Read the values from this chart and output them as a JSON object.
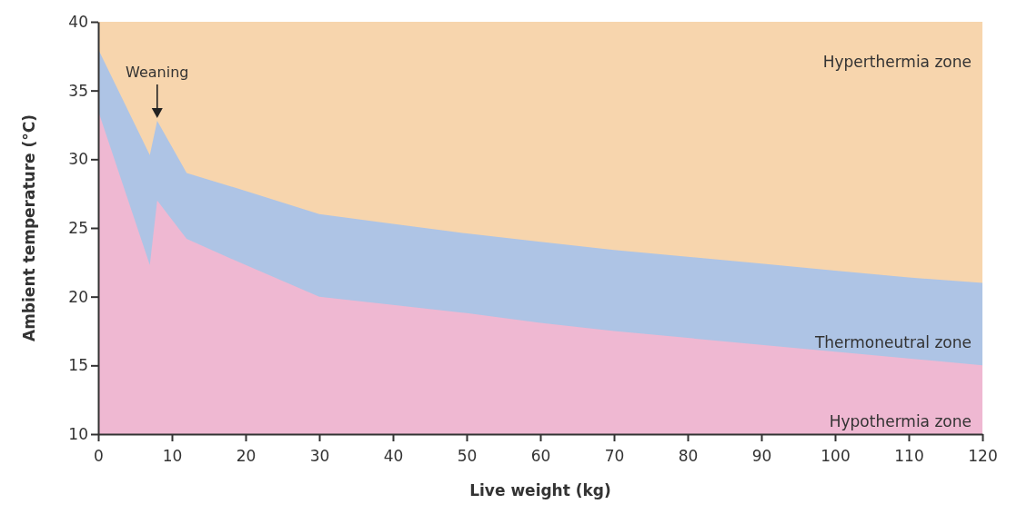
{
  "chart_data": {
    "type": "area",
    "xlabel": "Live weight (kg)",
    "ylabel": "Ambient temperature (°C)",
    "xlim": [
      0,
      120
    ],
    "ylim": [
      10,
      40
    ],
    "xticks": [
      0,
      10,
      20,
      30,
      40,
      50,
      60,
      70,
      80,
      90,
      100,
      110,
      120
    ],
    "yticks": [
      10,
      15,
      20,
      25,
      30,
      35,
      40
    ],
    "series": [
      {
        "name": "Thermoneutral zone",
        "color": "#aec4e5",
        "x": [
          0,
          7,
          8,
          12,
          20,
          30,
          40,
          50,
          60,
          70,
          80,
          90,
          100,
          110,
          120
        ],
        "values": [
          38,
          30.3,
          32.8,
          29,
          27.7,
          26,
          25.3,
          24.6,
          24,
          23.4,
          22.9,
          22.4,
          21.9,
          21.4,
          21
        ]
      },
      {
        "name": "Hypothermia zone",
        "color": "#efb8d2",
        "x": [
          0,
          7,
          8,
          12,
          20,
          30,
          40,
          50,
          60,
          70,
          80,
          90,
          100,
          110,
          120
        ],
        "values": [
          33.5,
          22.3,
          27,
          24.2,
          22.3,
          20,
          19.4,
          18.8,
          18.1,
          17.5,
          17,
          16.5,
          16,
          15.5,
          15
        ]
      }
    ],
    "bands": [
      {
        "axis": "y",
        "from": 10,
        "to": 40,
        "label": "Hyperthermia zone",
        "color": "#f7d5ad"
      }
    ],
    "annotations": [
      {
        "text": "Weaning",
        "x": 8,
        "y": 32.8
      }
    ],
    "grid": false,
    "legend": false
  }
}
